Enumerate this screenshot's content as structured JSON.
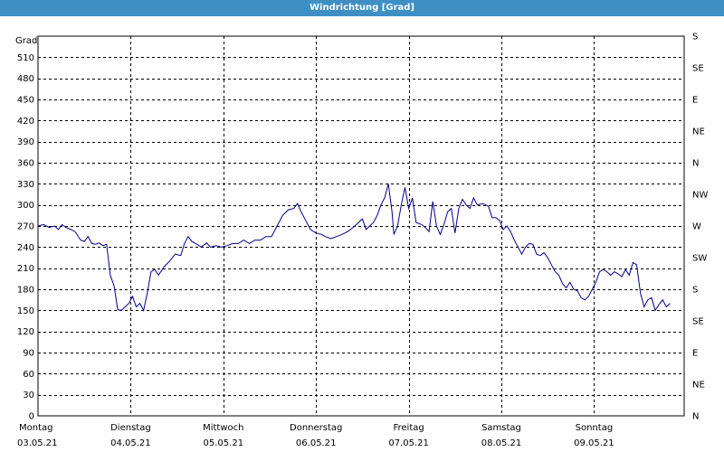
{
  "window": {
    "title": "Windrichtung [Grad]"
  },
  "chart_data": {
    "type": "line",
    "title": "Windrichtung [Grad]",
    "ylabel": "Grad",
    "ylim": [
      0,
      540
    ],
    "y_ticks": [
      0,
      30,
      60,
      90,
      120,
      150,
      180,
      210,
      240,
      270,
      300,
      330,
      360,
      390,
      420,
      450,
      480,
      510
    ],
    "y2_ticks": [
      {
        "value": 0,
        "label": "N"
      },
      {
        "value": 45,
        "label": "NE"
      },
      {
        "value": 90,
        "label": "E"
      },
      {
        "value": 135,
        "label": "SE"
      },
      {
        "value": 180,
        "label": "S"
      },
      {
        "value": 225,
        "label": "SW"
      },
      {
        "value": 270,
        "label": "W"
      },
      {
        "value": 315,
        "label": "NW"
      },
      {
        "value": 360,
        "label": "N"
      },
      {
        "value": 405,
        "label": "NE"
      },
      {
        "value": 450,
        "label": "E"
      },
      {
        "value": 495,
        "label": "SE"
      },
      {
        "value": 540,
        "label": "S"
      }
    ],
    "xlim": [
      0,
      7
    ],
    "x_ticks": [
      {
        "day": "Montag",
        "date": "03.05.21"
      },
      {
        "day": "Dienstag",
        "date": "04.05.21"
      },
      {
        "day": "Mittwoch",
        "date": "05.05.21"
      },
      {
        "day": "Donnerstag",
        "date": "06.05.21"
      },
      {
        "day": "Freitag",
        "date": "07.05.21"
      },
      {
        "day": "Samstag",
        "date": "08.05.21"
      },
      {
        "day": "Sonntag",
        "date": "09.05.21"
      }
    ],
    "grid": true,
    "colors": {
      "line": "#00008b",
      "grid": "#000000",
      "titlebar": "#3e8fc4"
    },
    "series": [
      {
        "values": [
          [
            0.0,
            270
          ],
          [
            0.06,
            272
          ],
          [
            0.12,
            268
          ],
          [
            0.18,
            270
          ],
          [
            0.22,
            265
          ],
          [
            0.26,
            272
          ],
          [
            0.3,
            268
          ],
          [
            0.34,
            266
          ],
          [
            0.4,
            262
          ],
          [
            0.46,
            250
          ],
          [
            0.5,
            248
          ],
          [
            0.54,
            255
          ],
          [
            0.58,
            245
          ],
          [
            0.62,
            244
          ],
          [
            0.66,
            246
          ],
          [
            0.7,
            242
          ],
          [
            0.74,
            244
          ],
          [
            0.78,
            200
          ],
          [
            0.82,
            185
          ],
          [
            0.86,
            151
          ],
          [
            0.9,
            150
          ],
          [
            0.94,
            155
          ],
          [
            0.98,
            160
          ],
          [
            1.02,
            170
          ],
          [
            1.06,
            155
          ],
          [
            1.1,
            160
          ],
          [
            1.14,
            150
          ],
          [
            1.18,
            175
          ],
          [
            1.22,
            205
          ],
          [
            1.26,
            208
          ],
          [
            1.3,
            200
          ],
          [
            1.36,
            212
          ],
          [
            1.42,
            220
          ],
          [
            1.48,
            230
          ],
          [
            1.54,
            228
          ],
          [
            1.58,
            245
          ],
          [
            1.62,
            255
          ],
          [
            1.66,
            248
          ],
          [
            1.7,
            245
          ],
          [
            1.76,
            240
          ],
          [
            1.82,
            246
          ],
          [
            1.86,
            240
          ],
          [
            1.92,
            242
          ],
          [
            1.98,
            240
          ],
          [
            2.04,
            242
          ],
          [
            2.1,
            245
          ],
          [
            2.16,
            245
          ],
          [
            2.22,
            250
          ],
          [
            2.28,
            245
          ],
          [
            2.34,
            250
          ],
          [
            2.4,
            250
          ],
          [
            2.46,
            255
          ],
          [
            2.52,
            255
          ],
          [
            2.58,
            270
          ],
          [
            2.64,
            285
          ],
          [
            2.7,
            293
          ],
          [
            2.76,
            295
          ],
          [
            2.8,
            302
          ],
          [
            2.84,
            290
          ],
          [
            2.88,
            280
          ],
          [
            2.94,
            265
          ],
          [
            3.0,
            260
          ],
          [
            3.06,
            258
          ],
          [
            3.1,
            255
          ],
          [
            3.16,
            252
          ],
          [
            3.22,
            255
          ],
          [
            3.28,
            258
          ],
          [
            3.34,
            262
          ],
          [
            3.4,
            268
          ],
          [
            3.46,
            275
          ],
          [
            3.5,
            280
          ],
          [
            3.54,
            265
          ],
          [
            3.58,
            270
          ],
          [
            3.62,
            275
          ],
          [
            3.66,
            285
          ],
          [
            3.7,
            300
          ],
          [
            3.74,
            310
          ],
          [
            3.78,
            330
          ],
          [
            3.82,
            290
          ],
          [
            3.84,
            258
          ],
          [
            3.88,
            270
          ],
          [
            3.92,
            300
          ],
          [
            3.96,
            325
          ],
          [
            4.0,
            295
          ],
          [
            4.04,
            310
          ],
          [
            4.08,
            275
          ],
          [
            4.14,
            272
          ],
          [
            4.18,
            268
          ],
          [
            4.22,
            262
          ],
          [
            4.26,
            305
          ],
          [
            4.3,
            270
          ],
          [
            4.34,
            258
          ],
          [
            4.38,
            272
          ],
          [
            4.42,
            290
          ],
          [
            4.46,
            295
          ],
          [
            4.5,
            260
          ],
          [
            4.54,
            295
          ],
          [
            4.58,
            308
          ],
          [
            4.62,
            300
          ],
          [
            4.66,
            295
          ],
          [
            4.7,
            310
          ],
          [
            4.74,
            300
          ],
          [
            4.8,
            302
          ],
          [
            4.86,
            298
          ],
          [
            4.9,
            282
          ],
          [
            4.94,
            282
          ],
          [
            4.98,
            278
          ],
          [
            5.02,
            265
          ],
          [
            5.06,
            270
          ],
          [
            5.1,
            262
          ],
          [
            5.14,
            250
          ],
          [
            5.18,
            240
          ],
          [
            5.22,
            230
          ],
          [
            5.26,
            240
          ],
          [
            5.3,
            245
          ],
          [
            5.34,
            244
          ],
          [
            5.38,
            230
          ],
          [
            5.42,
            228
          ],
          [
            5.46,
            232
          ],
          [
            5.5,
            225
          ],
          [
            5.54,
            215
          ],
          [
            5.58,
            205
          ],
          [
            5.62,
            200
          ],
          [
            5.66,
            188
          ],
          [
            5.7,
            182
          ],
          [
            5.74,
            190
          ],
          [
            5.78,
            180
          ],
          [
            5.82,
            178
          ],
          [
            5.86,
            168
          ],
          [
            5.9,
            165
          ],
          [
            5.94,
            170
          ],
          [
            5.98,
            180
          ],
          [
            6.02,
            190
          ],
          [
            6.06,
            205
          ],
          [
            6.1,
            208
          ],
          [
            6.14,
            205
          ],
          [
            6.18,
            200
          ],
          [
            6.22,
            205
          ],
          [
            6.26,
            202
          ],
          [
            6.3,
            198
          ],
          [
            6.34,
            208
          ],
          [
            6.38,
            200
          ],
          [
            6.42,
            218
          ],
          [
            6.46,
            215
          ],
          [
            6.5,
            175
          ],
          [
            6.54,
            155
          ],
          [
            6.58,
            165
          ],
          [
            6.62,
            168
          ],
          [
            6.66,
            150
          ],
          [
            6.7,
            158
          ],
          [
            6.74,
            165
          ],
          [
            6.78,
            155
          ],
          [
            6.82,
            160
          ]
        ]
      }
    ]
  }
}
